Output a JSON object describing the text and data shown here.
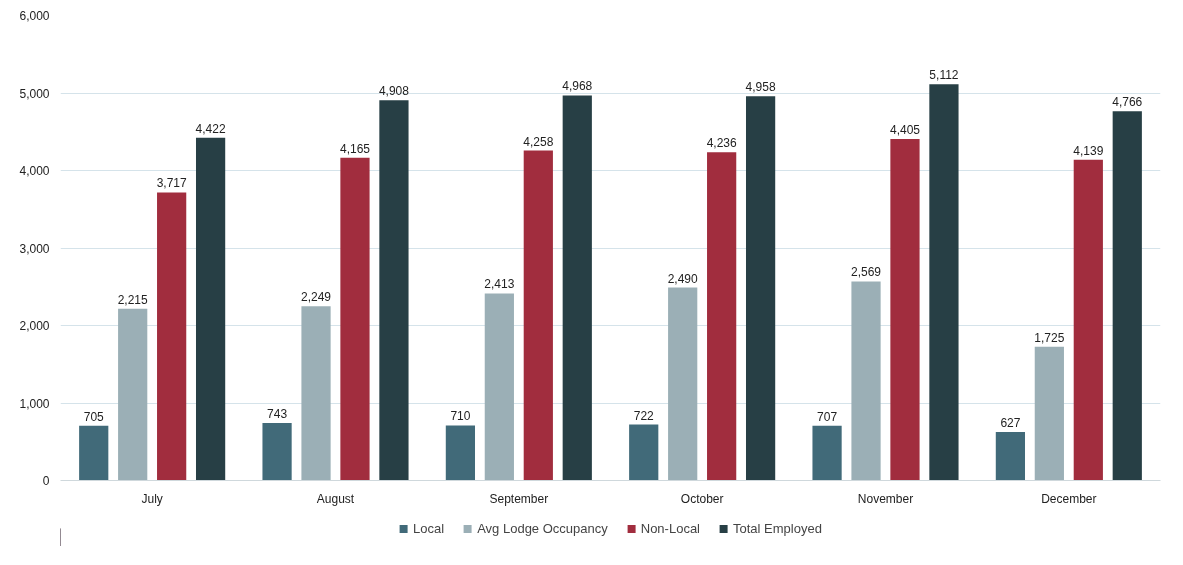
{
  "chart_data": {
    "type": "bar",
    "categories": [
      "July",
      "August",
      "September",
      "October",
      "November",
      "December"
    ],
    "series": [
      {
        "name": "Local",
        "color": "#416a79",
        "values": [
          705,
          743,
          710,
          722,
          707,
          627
        ],
        "value_labels": [
          "705",
          "743",
          "710",
          "722",
          "707",
          "627"
        ]
      },
      {
        "name": "Avg Lodge Occupancy",
        "color": "#9bafb6",
        "values": [
          2215,
          2249,
          2413,
          2490,
          2569,
          1725
        ],
        "value_labels": [
          "2,215",
          "2,249",
          "2,413",
          "2,490",
          "2,569",
          "1,725"
        ]
      },
      {
        "name": "Non-Local",
        "color": "#a12d3e",
        "values": [
          3717,
          4165,
          4258,
          4236,
          4405,
          4139
        ],
        "value_labels": [
          "3,717",
          "4,165",
          "4,258",
          "4,236",
          "4,405",
          "4,139"
        ]
      },
      {
        "name": "Total Employed",
        "color": "#273f45",
        "values": [
          4422,
          4908,
          4968,
          4958,
          5112,
          4766
        ],
        "value_labels": [
          "4,422",
          "4,908",
          "4,968",
          "4,958",
          "5,112",
          "4,766"
        ]
      }
    ],
    "ylim": [
      0,
      6000
    ],
    "yticks": [
      {
        "value": 0,
        "label": "0"
      },
      {
        "value": 1000,
        "label": "1,000"
      },
      {
        "value": 2000,
        "label": "2,000"
      },
      {
        "value": 3000,
        "label": "3,000"
      },
      {
        "value": 4000,
        "label": "4,000"
      },
      {
        "value": 5000,
        "label": "5,000"
      },
      {
        "value": 6000,
        "label": "6,000"
      }
    ],
    "grid": "y",
    "legend": "bottom"
  }
}
